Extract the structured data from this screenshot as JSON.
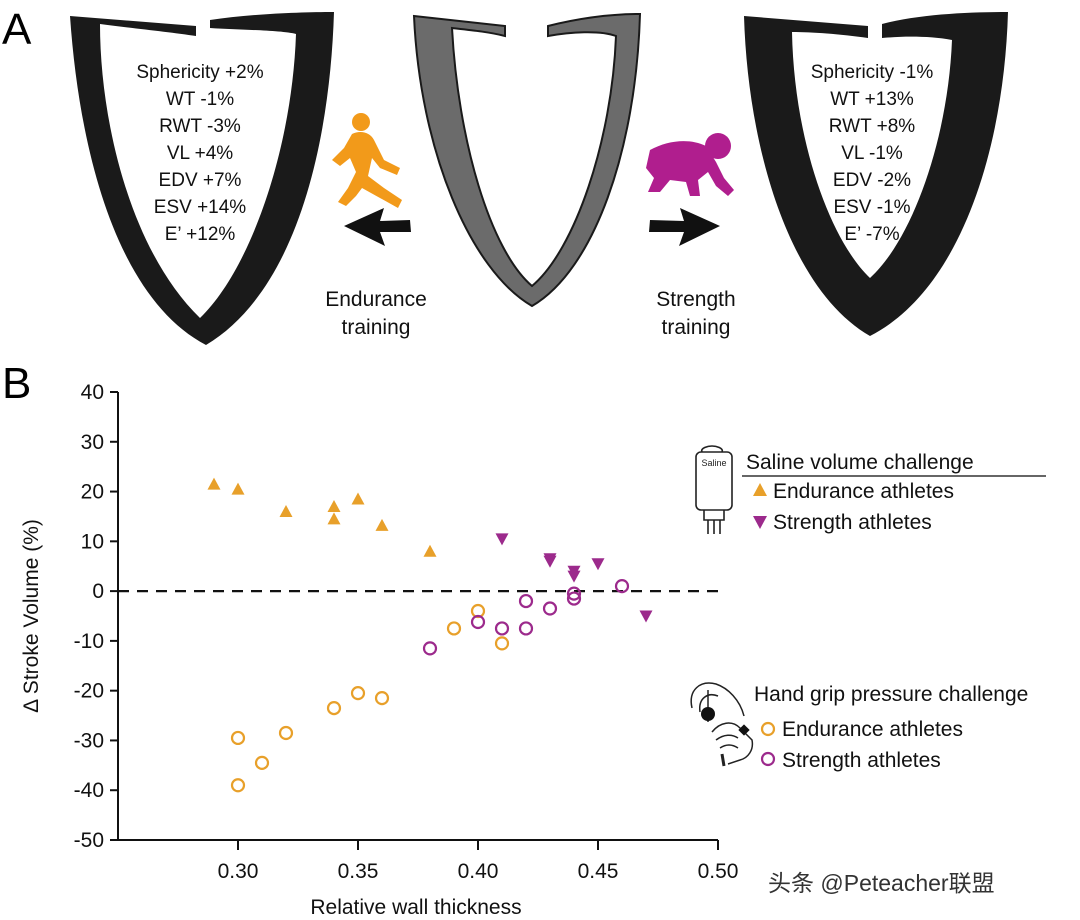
{
  "panel_a": {
    "label": "A",
    "left_heart_metrics": [
      "Sphericity +2%",
      "WT -1%",
      "RWT -3%",
      "VL +4%",
      "EDV +7%",
      "ESV +14%",
      "E’ +12%"
    ],
    "right_heart_metrics": [
      "Sphericity -1%",
      "WT +13%",
      "RWT +8%",
      "VL -1%",
      "EDV -2%",
      "ESV -1%",
      "E’ -7%"
    ],
    "endurance_label_line1": "Endurance",
    "endurance_label_line2": "training",
    "strength_label_line1": "Strength",
    "strength_label_line2": "training",
    "icons": [
      "runner-icon",
      "lineman-icon",
      "arrow-left-icon",
      "arrow-right-icon"
    ]
  },
  "panel_b": {
    "label": "B",
    "saline_bag_text": "Saline",
    "legend_saline_title": "Saline volume challenge",
    "legend_grip_title": "Hand grip pressure challenge",
    "legend_endurance": "Endurance athletes",
    "legend_strength": "Strength athletes"
  },
  "watermark": "头条 @Peteacher联盟",
  "colors": {
    "endurance": "#E8A02A",
    "strength": "#9C2A8C",
    "heart_dark": "#1a1a1a",
    "heart_grey": "#6b6b6b",
    "runner": "#F29A1A",
    "lineman": "#B01E8E"
  },
  "chart_data": {
    "type": "scatter",
    "xlabel": "Relative wall thickness",
    "ylabel": "Δ Stroke Volume (%)",
    "xlim": [
      0.25,
      0.5
    ],
    "ylim": [
      -50,
      40
    ],
    "x_ticks": [
      0.3,
      0.35,
      0.4,
      0.45,
      0.5
    ],
    "x_tick_labels": [
      "0.30",
      "0.35",
      "0.40",
      "0.45",
      "0.50"
    ],
    "y_ticks": [
      40,
      30,
      20,
      10,
      0,
      -10,
      -20,
      -30,
      -40,
      -50
    ],
    "y_tick_labels": [
      "40",
      "30",
      "20",
      "10",
      "0",
      "-10",
      "-20",
      "-30",
      "-40",
      "-50"
    ],
    "reference_line_y": 0,
    "grid": false,
    "legend": "right",
    "series": [
      {
        "group": "Saline volume challenge",
        "name": "Endurance athletes",
        "marker": "triangle-up",
        "color": "#E8A02A",
        "points": [
          [
            0.29,
            21.5
          ],
          [
            0.3,
            20.5
          ],
          [
            0.32,
            16
          ],
          [
            0.34,
            17
          ],
          [
            0.34,
            14.5
          ],
          [
            0.35,
            18.5
          ],
          [
            0.36,
            13.2
          ],
          [
            0.38,
            8
          ]
        ]
      },
      {
        "group": "Saline volume challenge",
        "name": "Strength athletes",
        "marker": "triangle-down",
        "color": "#9C2A8C",
        "points": [
          [
            0.41,
            10.5
          ],
          [
            0.43,
            6
          ],
          [
            0.43,
            6.5
          ],
          [
            0.44,
            4
          ],
          [
            0.44,
            3
          ],
          [
            0.45,
            5.5
          ],
          [
            0.47,
            -5
          ]
        ]
      },
      {
        "group": "Hand grip pressure challenge",
        "name": "Endurance athletes",
        "marker": "circle-open",
        "color": "#E8A02A",
        "points": [
          [
            0.3,
            -29.5
          ],
          [
            0.3,
            -39
          ],
          [
            0.31,
            -34.5
          ],
          [
            0.32,
            -28.5
          ],
          [
            0.34,
            -23.5
          ],
          [
            0.35,
            -20.5
          ],
          [
            0.36,
            -21.5
          ],
          [
            0.39,
            -7.5
          ],
          [
            0.4,
            -4
          ],
          [
            0.41,
            -10.5
          ]
        ]
      },
      {
        "group": "Hand grip pressure challenge",
        "name": "Strength athletes",
        "marker": "circle-open",
        "color": "#9C2A8C",
        "points": [
          [
            0.38,
            -11.5
          ],
          [
            0.4,
            -6.2
          ],
          [
            0.41,
            -7.5
          ],
          [
            0.42,
            -2
          ],
          [
            0.42,
            -7.5
          ],
          [
            0.43,
            -3.5
          ],
          [
            0.44,
            -1.5
          ],
          [
            0.44,
            -0.5
          ],
          [
            0.46,
            1
          ]
        ]
      }
    ]
  }
}
